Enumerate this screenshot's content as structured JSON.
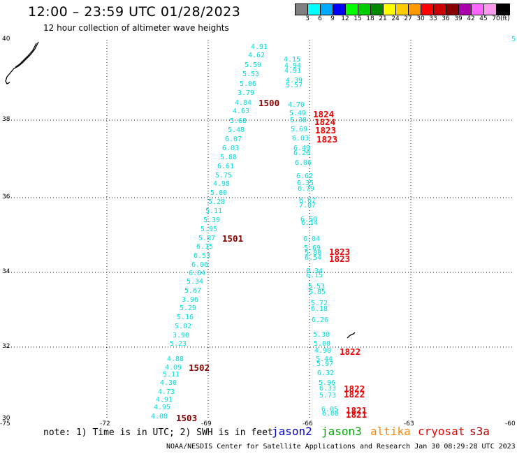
{
  "title": "12:00 – 23:59 UTC 01/28/2023",
  "subtitle": "12 hour collection of altimeter wave heights",
  "legend": {
    "colors": [
      "#808080",
      "#00ffff",
      "#00aaff",
      "#0000ff",
      "#00ff00",
      "#00cc00",
      "#008800",
      "#ffff00",
      "#ffcc00",
      "#ff9900",
      "#ff0000",
      "#cc0000",
      "#880000",
      "#aa00aa",
      "#ff66ff",
      "#ff99ee",
      "#000000"
    ],
    "labels": [
      "3",
      "6",
      "9",
      "12",
      "15",
      "18",
      "21",
      "24",
      "27",
      "30",
      "33",
      "36",
      "39",
      "42",
      "45",
      "70"
    ],
    "unit": "(ft)"
  },
  "axes": {
    "x_ticks": [
      "-75",
      "-72",
      "-69",
      "-66",
      "-63",
      "-60"
    ],
    "y_ticks": [
      "40",
      "38",
      "36",
      "34",
      "32",
      "30"
    ]
  },
  "corner_label": "5",
  "swh_cyan": [
    "4.91",
    "4.62",
    "5.59",
    "5.53",
    "5.06",
    "3.79",
    "4.84",
    "4.63",
    "5.68",
    "5.48",
    "6.07",
    "6.03",
    "5.88",
    "6.61",
    "5.75",
    "4.98",
    "5.00",
    "5.28",
    "5.11",
    "5.39",
    "5.95",
    "5.87",
    "6.15",
    "6.53",
    "6.06",
    "6.04",
    "5.34",
    "5.67",
    "3.96",
    "5.29",
    "5.16",
    "5.02",
    "3.90",
    "5.23",
    "4.88",
    "4.09",
    "5.11",
    "4.30",
    "4.73",
    "4.91",
    "4.95",
    "4.08",
    "4.15",
    "4.94",
    "4.91",
    "4.39",
    "5.57",
    "4.70",
    "5.49",
    "5.38",
    "5.69",
    "6.03",
    "6.49",
    "6.26",
    "6.06",
    "6.62",
    "6.35",
    "6.79",
    "6.67",
    "7.07",
    "6.50",
    "6.14",
    "6.04",
    "5.69",
    "5.88",
    "6.54",
    "6.34",
    "6.15",
    "5.53",
    "5.85",
    "5.72",
    "6.18",
    "6.26",
    "5.38",
    "5.00",
    "4.90",
    "5.44",
    "5.97",
    "6.32",
    "5.96",
    "6.33",
    "5.73",
    "6.05",
    "6.08"
  ],
  "pass_dark": [
    "1500",
    "1501",
    "1502",
    "1503"
  ],
  "pass_red": [
    "1824",
    "1824",
    "1823",
    "1823",
    "1823",
    "1823",
    "1822",
    "1822",
    "1822",
    "1821",
    "1821"
  ],
  "note": "note: 1) Time is in UTC; 2) SWH is in feet",
  "satellites": [
    {
      "name": "jason2",
      "color": "#0000cc"
    },
    {
      "name": "jason3",
      "color": "#00aa00"
    },
    {
      "name": "altika",
      "color": "#ff8800"
    },
    {
      "name": "cryosat",
      "color": "#ee0000"
    },
    {
      "name": "s3a",
      "color": "#aa0000"
    }
  ],
  "footer": "NOAA/NESDIS Center for Satellite Applications and Research   Jan 30 08:29:28 UTC 2023"
}
